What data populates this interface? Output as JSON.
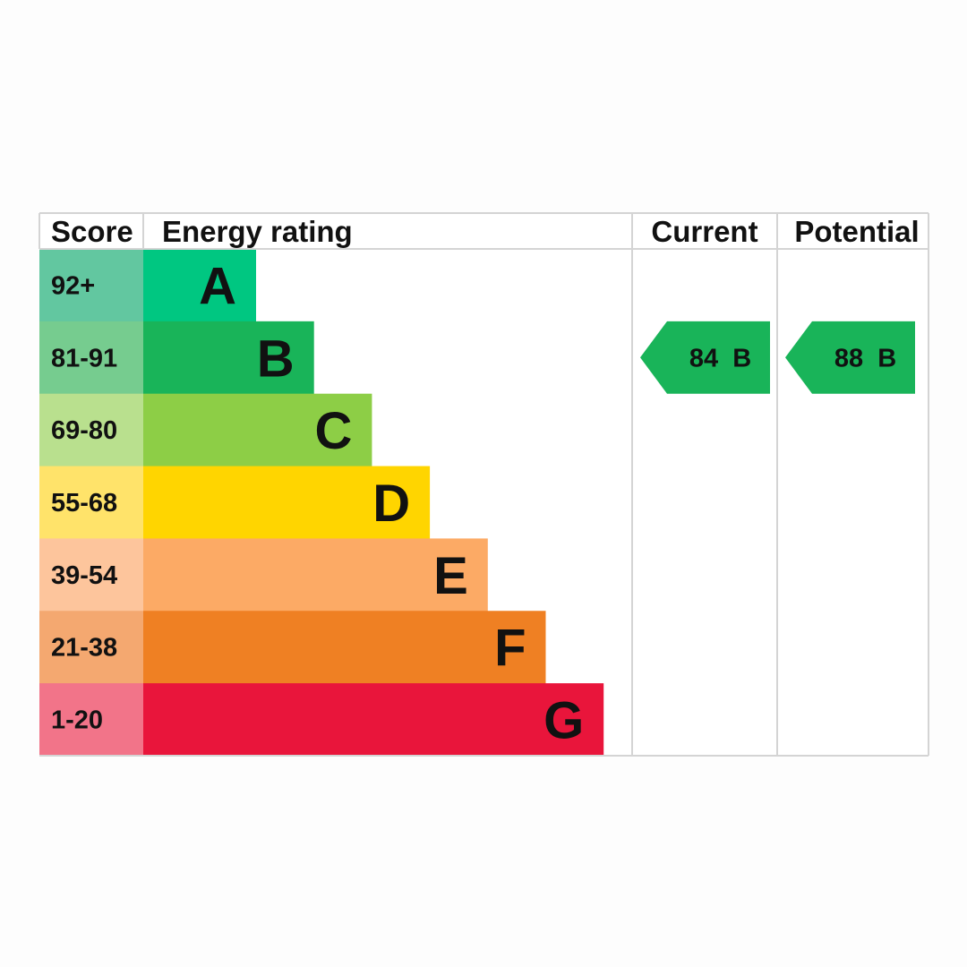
{
  "chart_data": {
    "type": "bar",
    "headers": {
      "score": "Score",
      "rating": "Energy rating",
      "current": "Current",
      "potential": "Potential"
    },
    "bands": [
      {
        "letter": "A",
        "range": "92+",
        "color": "#00c781",
        "score_color": "#62c7a0"
      },
      {
        "letter": "B",
        "range": "81-91",
        "color": "#19b459",
        "score_color": "#76cc8f"
      },
      {
        "letter": "C",
        "range": "69-80",
        "color": "#8dce46",
        "score_color": "#b9e08e"
      },
      {
        "letter": "D",
        "range": "55-68",
        "color": "#ffd500",
        "score_color": "#ffe36a"
      },
      {
        "letter": "E",
        "range": "39-54",
        "color": "#fcaa65",
        "score_color": "#fdc59c"
      },
      {
        "letter": "F",
        "range": "21-38",
        "color": "#ef8023",
        "score_color": "#f4a870"
      },
      {
        "letter": "G",
        "range": "1-20",
        "color": "#e9153b",
        "score_color": "#f27489"
      }
    ],
    "current": {
      "score": 84,
      "band": "B",
      "label": "84  B",
      "color": "#19b459"
    },
    "potential": {
      "score": 88,
      "band": "B",
      "label": "88  B",
      "color": "#19b459"
    }
  }
}
